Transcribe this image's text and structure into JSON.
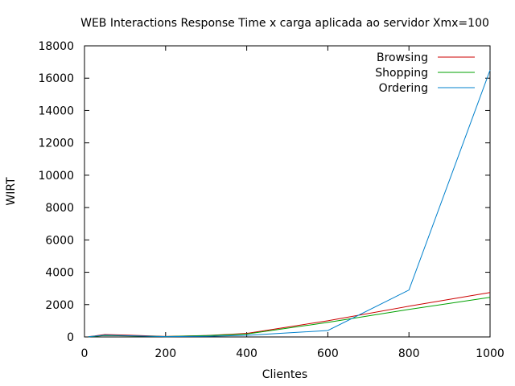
{
  "chart_data": {
    "type": "line",
    "title": "WEB Interactions Response Time x carga aplicada ao servidor Xmx=100",
    "xlabel": "Clientes",
    "ylabel": "WIRT",
    "xlim": [
      0,
      1000
    ],
    "ylim": [
      0,
      18000
    ],
    "xticks": [
      0,
      200,
      400,
      600,
      800,
      1000
    ],
    "yticks": [
      0,
      2000,
      4000,
      6000,
      8000,
      10000,
      12000,
      14000,
      16000,
      18000
    ],
    "grid": false,
    "legend": "top-right",
    "series": [
      {
        "name": "Browsing",
        "color": "#cc0000",
        "x": [
          10,
          25,
          50,
          100,
          200,
          300,
          400,
          600,
          800,
          1000
        ],
        "y": [
          20,
          60,
          150,
          120,
          30,
          90,
          220,
          1000,
          1900,
          2750
        ]
      },
      {
        "name": "Shopping",
        "color": "#00a000",
        "x": [
          10,
          25,
          50,
          100,
          200,
          300,
          400,
          600,
          800,
          1000
        ],
        "y": [
          10,
          40,
          90,
          70,
          25,
          80,
          180,
          900,
          1700,
          2450
        ]
      },
      {
        "name": "Ordering",
        "color": "#0080cc",
        "x": [
          10,
          25,
          50,
          100,
          200,
          300,
          400,
          600,
          800,
          1000
        ],
        "y": [
          15,
          50,
          110,
          80,
          20,
          40,
          100,
          400,
          2900,
          16500
        ]
      }
    ]
  }
}
